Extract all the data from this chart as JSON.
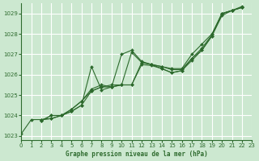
{
  "background_color": "#cce8d0",
  "grid_color": "#ffffff",
  "line_color": "#2d6a2d",
  "marker_color": "#2d6a2d",
  "xlabel": "Graphe pression niveau de la mer (hPa)",
  "xlim": [
    0,
    23
  ],
  "ylim": [
    1022.8,
    1029.5
  ],
  "yticks": [
    1023,
    1024,
    1025,
    1026,
    1027,
    1028,
    1029
  ],
  "xticks": [
    0,
    1,
    2,
    3,
    4,
    5,
    6,
    7,
    8,
    9,
    10,
    11,
    12,
    13,
    14,
    15,
    16,
    17,
    18,
    19,
    20,
    21,
    22,
    23
  ],
  "series": [
    {
      "x": [
        0,
        1,
        2,
        3,
        4,
        5,
        6,
        7,
        8,
        9,
        10,
        11,
        12,
        13,
        14,
        15,
        16,
        17,
        18,
        19,
        20,
        21,
        22
      ],
      "y": [
        1023.1,
        1023.8,
        1023.8,
        1023.85,
        1024.0,
        1024.2,
        1024.5,
        1026.4,
        1025.25,
        1025.4,
        1027.0,
        1027.2,
        1026.65,
        1026.5,
        1026.4,
        1026.3,
        1026.3,
        1027.0,
        1027.5,
        1028.0,
        1029.0,
        1029.15,
        1029.3
      ]
    },
    {
      "x": [
        2,
        3,
        4,
        5,
        6,
        7,
        8,
        9,
        10,
        11,
        12,
        13,
        14,
        15,
        16,
        17,
        18,
        19,
        20,
        21,
        22
      ],
      "y": [
        1023.8,
        1023.85,
        1024.0,
        1024.2,
        1024.5,
        1025.2,
        1025.4,
        1025.5,
        1025.5,
        1027.1,
        1026.6,
        1026.5,
        1026.4,
        1026.25,
        1026.25,
        1026.8,
        1027.3,
        1027.95,
        1029.0,
        1029.15,
        1029.3
      ]
    },
    {
      "x": [
        2,
        3,
        4,
        5,
        6,
        7,
        8,
        9,
        10,
        11,
        12,
        13,
        14,
        15,
        16,
        17,
        18,
        19,
        20,
        21,
        22
      ],
      "y": [
        1023.75,
        1024.0,
        1024.0,
        1024.3,
        1024.7,
        1025.3,
        1025.5,
        1025.4,
        1025.5,
        1025.5,
        1026.6,
        1026.5,
        1026.3,
        1026.1,
        1026.2,
        1026.8,
        1027.2,
        1027.9,
        1029.0,
        1029.15,
        1029.3
      ]
    },
    {
      "x": [
        2,
        3,
        4,
        5,
        6,
        7,
        8,
        9,
        10,
        11,
        12,
        13,
        14,
        15,
        16,
        17,
        18,
        19,
        20,
        21,
        22
      ],
      "y": [
        1023.75,
        1024.0,
        1024.0,
        1024.3,
        1024.7,
        1025.2,
        1025.4,
        1025.4,
        1025.5,
        1025.5,
        1026.5,
        1026.45,
        1026.3,
        1026.1,
        1026.2,
        1026.7,
        1027.2,
        1027.9,
        1028.9,
        1029.15,
        1029.35
      ]
    }
  ]
}
